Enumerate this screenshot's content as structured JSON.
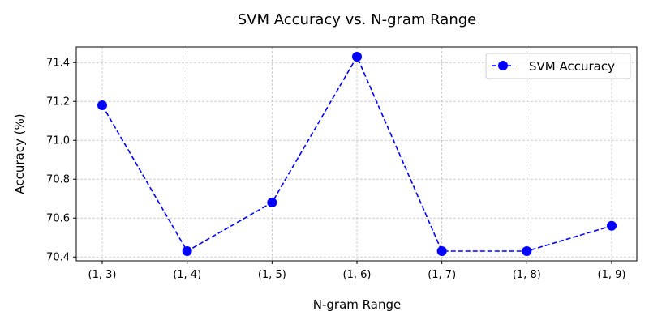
{
  "chart_data": {
    "type": "line",
    "title": "SVM Accuracy vs. N-gram Range",
    "xlabel": "N-gram Range",
    "ylabel": "Accuracy (%)",
    "categories": [
      "(1, 3)",
      "(1, 4)",
      "(1, 5)",
      "(1, 6)",
      "(1, 7)",
      "(1, 8)",
      "(1, 9)"
    ],
    "series": [
      {
        "name": "SVM Accuracy",
        "values": [
          71.18,
          70.43,
          70.68,
          71.43,
          70.43,
          70.43,
          70.56
        ],
        "color": "#0000ff",
        "line_style": "dashed",
        "marker": "circle"
      }
    ],
    "yticks": [
      "70.4",
      "70.6",
      "70.8",
      "71.0",
      "71.2",
      "71.4"
    ],
    "ylim": [
      70.38,
      71.48
    ],
    "grid": true,
    "legend_position": "top-right"
  }
}
